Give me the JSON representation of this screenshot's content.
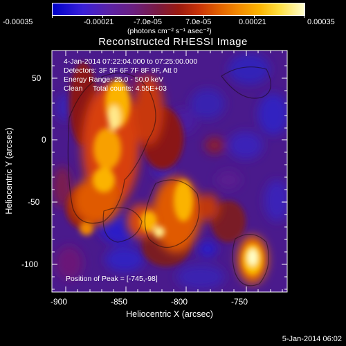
{
  "colorbar": {
    "tick_labels": [
      "-0.00035",
      "-0.00021",
      "-7.0e-05",
      "7.0e-05",
      "0.00021",
      "0.00035"
    ],
    "units": "(photons cm⁻² s⁻¹ asec⁻²)",
    "colors": [
      "#0000c8",
      "#5a22a8",
      "#7a1a40",
      "#c83208",
      "#f38b00",
      "#ffffd0"
    ]
  },
  "title": "Reconstructed RHESSI Image",
  "info": {
    "time_range": "4-Jan-2014 07:22:04.000 to 07:25:00.000",
    "detectors": "Detectors: 3F 5F 6F 7F 8F 9F, Att 0",
    "energy": "Energy Range: 25.0 - 50.0 keV",
    "clean": "Clean     Total counts: 4.55E+03",
    "peak": "Position of Peak = [-745,-98]"
  },
  "axes": {
    "xlabel": "Heliocentric X (arcsec)",
    "ylabel": "Heliocentric Y (arcsec)",
    "x_ticks": [
      "-900",
      "-850",
      "-800",
      "-750"
    ],
    "y_ticks": [
      "50",
      "0",
      "-50",
      "-100"
    ],
    "x_range": [
      -910,
      -715
    ],
    "y_range": [
      -122,
      70
    ]
  },
  "footer": {
    "date": "5-Jan-2014 06:02"
  }
}
